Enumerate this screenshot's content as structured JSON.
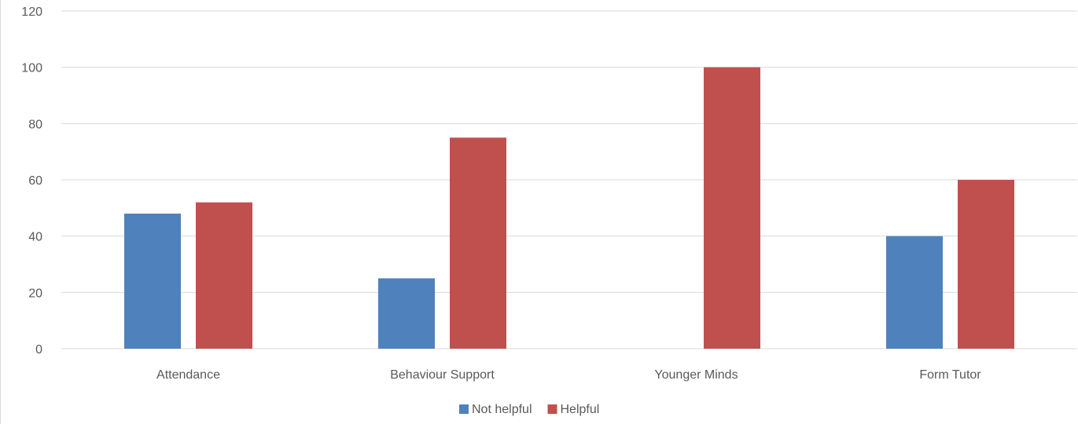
{
  "chart_data": {
    "type": "bar",
    "title": "",
    "xlabel": "",
    "ylabel": "",
    "categories": [
      "Attendance",
      "Behaviour Support",
      "Younger Minds",
      "Form Tutor"
    ],
    "series": [
      {
        "name": "Not helpful",
        "color": "#4f81bd",
        "values": [
          48,
          25,
          0,
          40
        ]
      },
      {
        "name": "Helpful",
        "color": "#c0504d",
        "values": [
          52,
          75,
          100,
          60
        ]
      }
    ],
    "ylim": [
      0,
      120
    ],
    "yticks": [
      "0",
      "20",
      "40",
      "60",
      "80",
      "100",
      "120"
    ],
    "grid": true,
    "legend_position": "bottom"
  }
}
